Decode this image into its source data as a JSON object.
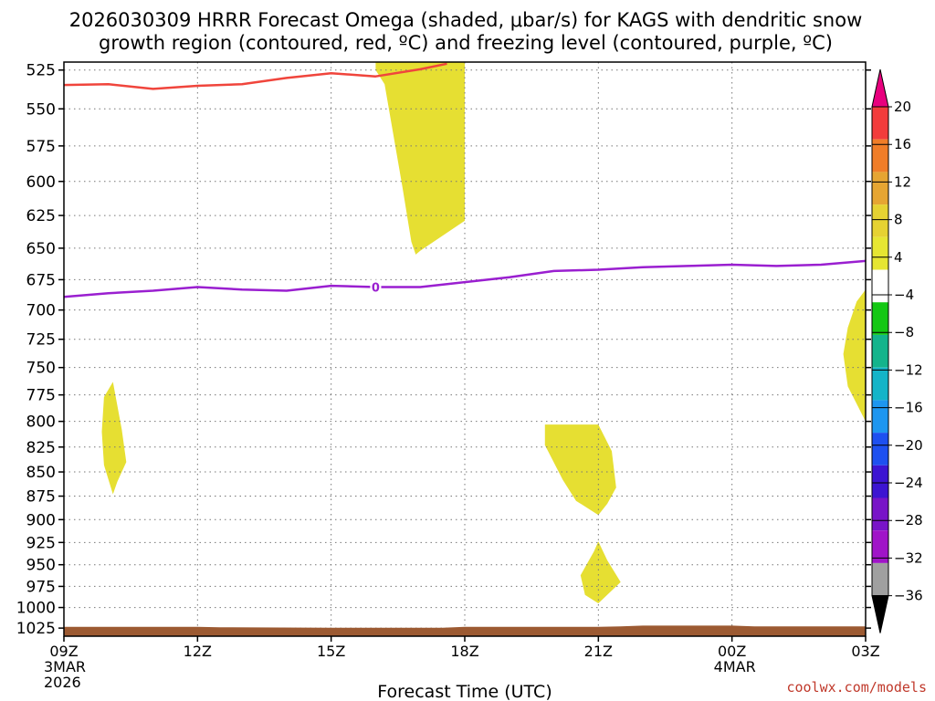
{
  "chart_data": {
    "type": "time-height-cross-section",
    "title_lines": [
      "2026030309 HRRR Forecast Omega (shaded, μbar/s) for KAGS with dendritic snow",
      "growth region (contoured, red, ºC) and freezing level (contoured, purple, ºC)"
    ],
    "xlabel": "Forecast Time (UTC)",
    "credit": "coolwx.com/models",
    "x_range_hours": [
      0,
      18
    ],
    "x_ticks": [
      {
        "hour": 0,
        "label": "09Z",
        "sub1": "3MAR",
        "sub2": "2026"
      },
      {
        "hour": 3,
        "label": "12Z",
        "sub1": "",
        "sub2": ""
      },
      {
        "hour": 6,
        "label": "15Z",
        "sub1": "",
        "sub2": ""
      },
      {
        "hour": 9,
        "label": "18Z",
        "sub1": "",
        "sub2": ""
      },
      {
        "hour": 12,
        "label": "21Z",
        "sub1": "",
        "sub2": ""
      },
      {
        "hour": 15,
        "label": "00Z",
        "sub1": "4MAR",
        "sub2": ""
      },
      {
        "hour": 18,
        "label": "03Z",
        "sub1": "",
        "sub2": ""
      }
    ],
    "y_ticks": [
      {
        "p": 525,
        "label": "525"
      },
      {
        "p": 550,
        "label": "550"
      },
      {
        "p": 575,
        "label": "575"
      },
      {
        "p": 600,
        "label": "600"
      },
      {
        "p": 625,
        "label": "625"
      },
      {
        "p": 650,
        "label": "650"
      },
      {
        "p": 675,
        "label": "675"
      },
      {
        "p": 700,
        "label": "700"
      },
      {
        "p": 725,
        "label": "725"
      },
      {
        "p": 750,
        "label": "750"
      },
      {
        "p": 775,
        "label": "775"
      },
      {
        "p": 800,
        "label": "800"
      },
      {
        "p": 825,
        "label": "825"
      },
      {
        "p": 850,
        "label": "850"
      },
      {
        "p": 875,
        "label": "875"
      },
      {
        "p": 900,
        "label": "900"
      },
      {
        "p": 925,
        "label": "925"
      },
      {
        "p": 950,
        "label": "950"
      },
      {
        "p": 975,
        "label": "975"
      },
      {
        "p": 1000,
        "label": "1000"
      },
      {
        "p": 1025,
        "label": "1025"
      }
    ],
    "pressure_range_mb": [
      520,
      1035
    ],
    "colorbar": {
      "labels": [
        "20",
        "16",
        "12",
        "8",
        "4",
        "−4",
        "−8",
        "−12",
        "−16",
        "−20",
        "−24",
        "−28",
        "−32",
        "−36"
      ],
      "colors": [
        "#e8007e",
        "#f23c3c",
        "#f07d28",
        "#e6a532",
        "#e6d232",
        "#e6e632",
        "#ffffff",
        "#14c814",
        "#14b48c",
        "#14b4c8",
        "#1e96f0",
        "#1e50f0",
        "#3c14d2",
        "#7814c8",
        "#a014c8",
        "#a0a0a0",
        "#000000"
      ]
    },
    "series": [
      {
        "name": "dendritic snow growth region",
        "color": "#f0453c",
        "points": [
          [
            0,
            534.5
          ],
          [
            1,
            534
          ],
          [
            2,
            537
          ],
          [
            3,
            535
          ],
          [
            4,
            534
          ],
          [
            5,
            530
          ],
          [
            6,
            527
          ],
          [
            7,
            529
          ],
          [
            8,
            524.5
          ],
          [
            8.6,
            521
          ]
        ]
      },
      {
        "name": "freezing level",
        "color": "#9a1fd0",
        "contour_label": "0",
        "points": [
          [
            0,
            689
          ],
          [
            1,
            686
          ],
          [
            2,
            684
          ],
          [
            3,
            681
          ],
          [
            4,
            683
          ],
          [
            5,
            684
          ],
          [
            6,
            680
          ],
          [
            7,
            681
          ],
          [
            8,
            681
          ],
          [
            9,
            677
          ],
          [
            10,
            673
          ],
          [
            11,
            668
          ],
          [
            12,
            667
          ],
          [
            13,
            665
          ],
          [
            14,
            664
          ],
          [
            15,
            663
          ],
          [
            16,
            664
          ],
          [
            17,
            663
          ],
          [
            18,
            660
          ]
        ]
      }
    ],
    "omega_regions": [
      {
        "name": "omega-area-upper",
        "value_range": "4 to 8",
        "points": [
          [
            7,
            520
          ],
          [
            9,
            520
          ],
          [
            9,
            536
          ],
          [
            9,
            629
          ],
          [
            8,
            652
          ],
          [
            7.9,
            655
          ],
          [
            7.8,
            645
          ],
          [
            7.6,
            604
          ],
          [
            7.4,
            568
          ],
          [
            7.2,
            534
          ],
          [
            7,
            525
          ]
        ]
      },
      {
        "name": "omega-area-left",
        "value_range": "4 to 8",
        "points": [
          [
            0.9,
            777
          ],
          [
            1.1,
            763
          ],
          [
            1.3,
            808
          ],
          [
            1.4,
            840
          ],
          [
            1.2,
            860
          ],
          [
            1.1,
            873
          ],
          [
            0.9,
            843
          ],
          [
            0.85,
            810
          ]
        ]
      },
      {
        "name": "omega-area-mid",
        "value_range": "4 to 8",
        "points": [
          [
            10.8,
            803
          ],
          [
            12,
            803
          ],
          [
            12.3,
            829
          ],
          [
            12.4,
            866
          ],
          [
            12.2,
            883
          ],
          [
            12,
            895
          ],
          [
            11.5,
            880
          ],
          [
            11.2,
            858
          ],
          [
            10.8,
            823
          ]
        ]
      },
      {
        "name": "omega-area-low",
        "value_range": "4 to 8",
        "points": [
          [
            12,
            924
          ],
          [
            12.2,
            945
          ],
          [
            12.5,
            970
          ],
          [
            12,
            995
          ],
          [
            11.7,
            985
          ],
          [
            11.6,
            962
          ],
          [
            11.9,
            935
          ]
        ]
      },
      {
        "name": "omega-area-right",
        "value_range": "4 to 8",
        "points": [
          [
            18,
            683
          ],
          [
            18,
            800
          ],
          [
            17.6,
            767
          ],
          [
            17.5,
            738
          ],
          [
            17.6,
            715
          ],
          [
            17.8,
            693
          ]
        ]
      }
    ],
    "terrain": {
      "name": "surface",
      "color": "#9c5a32",
      "top_points": [
        [
          0,
          1023.5
        ],
        [
          3,
          1023.5
        ],
        [
          3.5,
          1024
        ],
        [
          6,
          1024.5
        ],
        [
          8.5,
          1024.5
        ],
        [
          9,
          1023.5
        ],
        [
          12,
          1023.5
        ],
        [
          12.5,
          1023
        ],
        [
          13,
          1022
        ],
        [
          15,
          1022
        ],
        [
          15.5,
          1023
        ],
        [
          18,
          1023
        ]
      ]
    }
  }
}
